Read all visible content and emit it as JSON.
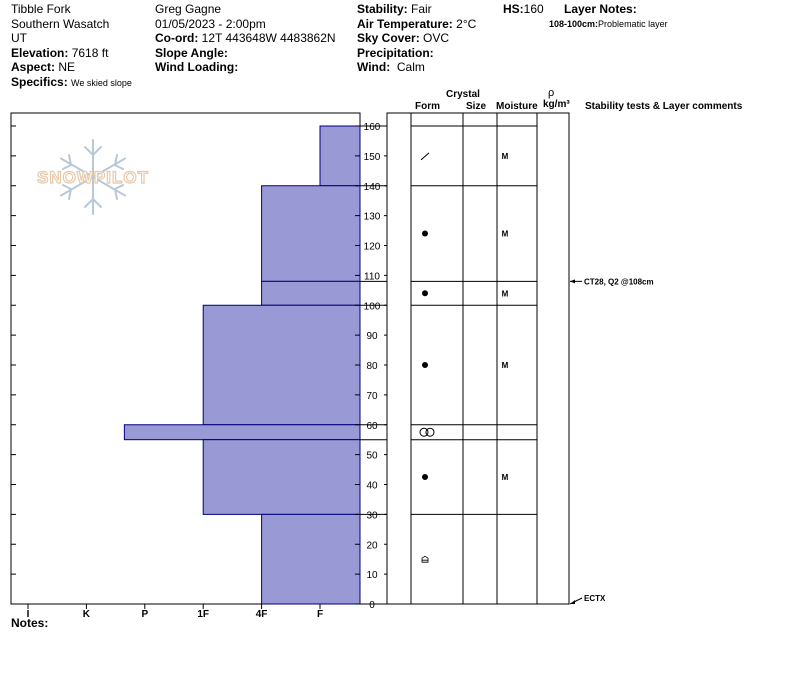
{
  "header": {
    "location": "Tibble Fork",
    "range": "Southern Wasatch",
    "state": "UT",
    "elevation_label": "Elevation:",
    "elevation": "7618 ft",
    "aspect_label": "Aspect:",
    "aspect": "NE",
    "specifics_label": "Specifics:",
    "specifics": "We skied slope",
    "observer": "Greg Gagne",
    "datetime": "01/05/2023 - 2:00pm",
    "coord_label": "Co-ord:",
    "coord": "12T 443648W 4483862N",
    "slope_label": "Slope Angle:",
    "slope": "",
    "wind_loading_label": "Wind Loading:",
    "wind_loading": "",
    "stability_label": "Stability:",
    "stability": "Fair",
    "air_temp_label": "Air Temperature:",
    "air_temp": "2°C",
    "sky_label": "Sky Cover:",
    "sky": "OVC",
    "precip_label": "Precipitation:",
    "precip": "",
    "wind_label": "Wind:",
    "wind": "Calm",
    "hs_label": "HS:",
    "hs": "160",
    "layer_notes_label": "Layer Notes:",
    "layer_note_range": "108-100cm:",
    "layer_note_text": "Problematic layer"
  },
  "columns": {
    "crystal": "Crystal",
    "form": "Form",
    "size": "Size",
    "moisture": "Moisture",
    "rho": "ρ",
    "density_unit": "kg/m³",
    "stability": "Stability tests & Layer comments"
  },
  "logo_text": "SNOWPILOT",
  "notes_label": "Notes:",
  "colors": {
    "layer_fill": "#9999d6",
    "layer_stroke": "#00007a"
  },
  "chart_data": {
    "type": "bar",
    "hardness_scale": [
      "I",
      "K",
      "P",
      "1F",
      "4F",
      "F"
    ],
    "y_ticks": [
      0,
      10,
      20,
      30,
      40,
      50,
      60,
      70,
      80,
      90,
      100,
      110,
      120,
      130,
      140,
      150,
      160
    ],
    "ylim": [
      0,
      160
    ],
    "layers": [
      {
        "top": 160,
        "bottom": 140,
        "hardness": 5.0
      },
      {
        "top": 140,
        "bottom": 108,
        "hardness": 4.0
      },
      {
        "top": 108,
        "bottom": 100,
        "hardness": 4.0
      },
      {
        "top": 100,
        "bottom": 60,
        "hardness": 3.0
      },
      {
        "top": 60,
        "bottom": 55,
        "hardness": 1.65
      },
      {
        "top": 55,
        "bottom": 30,
        "hardness": 3.0
      },
      {
        "top": 30,
        "bottom": 0,
        "hardness": 4.0
      }
    ],
    "symbols": [
      {
        "depth": 150,
        "form": "decomposing",
        "moisture": "M"
      },
      {
        "depth": 124,
        "form": "rounded",
        "moisture": "M"
      },
      {
        "depth": 104,
        "form": "rounded",
        "moisture": "M"
      },
      {
        "depth": 80,
        "form": "rounded",
        "moisture": "M"
      },
      {
        "depth": 57.5,
        "form": "melt-freeze",
        "moisture": ""
      },
      {
        "depth": 42.5,
        "form": "rounded",
        "moisture": "M"
      },
      {
        "depth": 15,
        "form": "depth-hoar",
        "moisture": ""
      }
    ],
    "tests": [
      {
        "depth": 108,
        "label": "CT28, Q2 @108cm"
      },
      {
        "depth": 0,
        "label": "ECTX"
      }
    ]
  }
}
